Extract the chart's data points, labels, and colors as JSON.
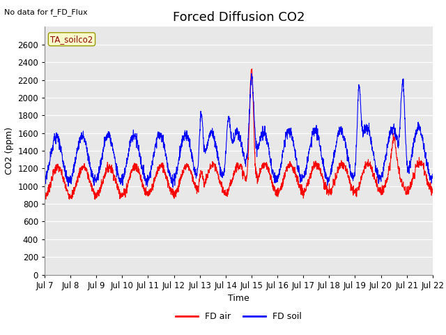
{
  "title": "Forced Diffusion CO2",
  "top_left_note": "No data for f_FD_Flux",
  "legend_label_note": "TA_soilco2",
  "xlabel": "Time",
  "ylabel": "CO2 (ppm)",
  "ylim": [
    0,
    2800
  ],
  "yticks": [
    0,
    200,
    400,
    600,
    800,
    1000,
    1200,
    1400,
    1600,
    1800,
    2000,
    2200,
    2400,
    2600
  ],
  "xtick_labels": [
    "Jul 7",
    "Jul 8",
    "Jul 9",
    "Jul 10",
    "Jul 11",
    "Jul 12",
    "Jul 13",
    "Jul 14",
    "Jul 15",
    "Jul 16",
    "Jul 17",
    "Jul 18",
    "Jul 19",
    "Jul 20",
    "Jul 21",
    "Jul 22"
  ],
  "legend_entries": [
    "FD air",
    "FD soil"
  ],
  "line_colors": [
    "#ff0000",
    "#0000ff"
  ],
  "bg_color": "#e8e8e8",
  "title_fontsize": 13,
  "axis_fontsize": 9,
  "tick_fontsize": 8.5
}
